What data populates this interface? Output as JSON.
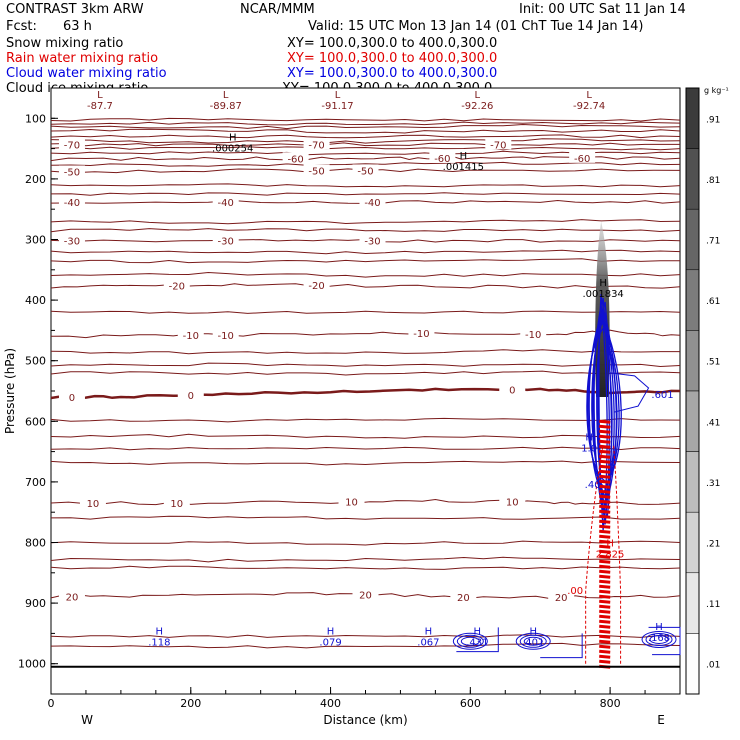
{
  "header": {
    "left_title": "CONTRAST  3km ARW",
    "forecast_label": "Fcst:",
    "forecast_hours": "63 h",
    "center_title": "NCAR/MMM",
    "init_time": "Init: 00 UTC Sat 11 Jan 14",
    "valid_time": "Valid: 15 UTC Mon 13 Jan 14 (01 ChT Tue 14 Jan 14)"
  },
  "fields": [
    {
      "name": "Snow mixing ratio",
      "xy": "XY= 100.0,300.0 to 400.0,300.0",
      "color": "#000000"
    },
    {
      "name": "Rain water mixing ratio",
      "xy": "XY= 100.0,300.0 to 400.0,300.0",
      "color": "#e00000"
    },
    {
      "name": "Cloud water mixing ratio",
      "xy": "XY= 100.0,300.0 to 400.0,300.0",
      "color": "#0000e0"
    },
    {
      "name": "Cloud ice mixing ratio",
      "xy": "XY= 100.0,300.0 to 400.0,300.0",
      "color": "#000000"
    }
  ],
  "colors": {
    "temperature": "#7a1a1a",
    "cloud_water": "#1010d0",
    "rain": "#e00000",
    "snow": "#000000",
    "axis": "#000000"
  },
  "chart_data": {
    "type": "contour",
    "xlabel": "Distance (km)",
    "ylabel": "Pressure (hPa)",
    "xlim": [
      0,
      900
    ],
    "ylim": [
      1050,
      50
    ],
    "x_ticks": [
      0,
      200,
      400,
      600,
      800
    ],
    "x_tick_labels": [
      "0",
      "200",
      "400",
      "600",
      "800"
    ],
    "y_ticks": [
      100,
      200,
      300,
      400,
      500,
      600,
      700,
      800,
      900,
      1000
    ],
    "y_tick_labels": [
      "100",
      "200",
      "300",
      "400",
      "500",
      "600",
      "700",
      "800",
      "900",
      "1000"
    ],
    "direction_left": "W",
    "direction_right": "E",
    "temperature_contours": [
      {
        "value": -70,
        "label": "-70",
        "points": [
          [
            0,
            143
          ],
          [
            200,
            143
          ],
          [
            450,
            143
          ],
          [
            700,
            143
          ],
          [
            900,
            143
          ]
        ],
        "label_x": [
          30,
          380,
          640
        ]
      },
      {
        "value": -60,
        "label": "-60",
        "points": [
          [
            0,
            168
          ],
          [
            200,
            166
          ],
          [
            350,
            166
          ],
          [
            500,
            166
          ],
          [
            600,
            165
          ],
          [
            720,
            165
          ],
          [
            900,
            166
          ]
        ],
        "label_x": [
          350,
          560,
          760
        ]
      },
      {
        "value": -50,
        "label": "-50",
        "points": [
          [
            0,
            188
          ],
          [
            250,
            186
          ],
          [
            400,
            186
          ],
          [
            600,
            186
          ],
          [
            900,
            186
          ]
        ],
        "label_x": [
          30,
          380,
          450
        ]
      },
      {
        "value": -40,
        "label": "-40",
        "points": [
          [
            0,
            238
          ],
          [
            300,
            238
          ],
          [
            500,
            238
          ],
          [
            700,
            238
          ],
          [
            900,
            238
          ]
        ],
        "label_x": [
          30,
          250,
          460
        ]
      },
      {
        "value": -30,
        "label": "-30",
        "points": [
          [
            0,
            302
          ],
          [
            300,
            302
          ],
          [
            500,
            302
          ],
          [
            700,
            302
          ],
          [
            900,
            302
          ]
        ],
        "label_x": [
          30,
          250,
          460
        ]
      },
      {
        "value": -20,
        "label": "-20",
        "points": [
          [
            0,
            378
          ],
          [
            150,
            376
          ],
          [
            300,
            374
          ],
          [
            500,
            377
          ],
          [
            700,
            378
          ],
          [
            900,
            378
          ]
        ],
        "label_x": [
          180,
          380
        ]
      },
      {
        "value": -10,
        "label": "-10",
        "points": [
          [
            0,
            460
          ],
          [
            200,
            458
          ],
          [
            400,
            456
          ],
          [
            550,
            454
          ],
          [
            700,
            456
          ],
          [
            800,
            452
          ],
          [
            900,
            458
          ]
        ],
        "label_x": [
          200,
          250,
          530,
          690
        ]
      },
      {
        "value": 0,
        "label": "0",
        "points": [
          [
            0,
            560
          ],
          [
            100,
            560
          ],
          [
            250,
            555
          ],
          [
            400,
            551
          ],
          [
            550,
            548
          ],
          [
            700,
            547
          ],
          [
            800,
            552
          ],
          [
            900,
            550
          ]
        ],
        "label_x": [
          30,
          200,
          660
        ],
        "bold": true
      },
      {
        "value": 10,
        "label": "10",
        "points": [
          [
            0,
            735
          ],
          [
            200,
            735
          ],
          [
            400,
            733
          ],
          [
            550,
            731
          ],
          [
            700,
            733
          ],
          [
            780,
            735
          ],
          [
            900,
            735
          ]
        ],
        "label_x": [
          60,
          180,
          430,
          660
        ]
      },
      {
        "value": 20,
        "label": "20",
        "points": [
          [
            0,
            889
          ],
          [
            150,
            888
          ],
          [
            300,
            884
          ],
          [
            450,
            886
          ],
          [
            600,
            890
          ],
          [
            750,
            890
          ],
          [
            900,
            888
          ]
        ],
        "label_x": [
          30,
          450,
          590,
          730
        ]
      }
    ],
    "extra_contour_lines_hpa": [
      103,
      108,
      114,
      121,
      130,
      137,
      150,
      157,
      176,
      211,
      225,
      270,
      285,
      320,
      335,
      358,
      420,
      485,
      508,
      520,
      598,
      625,
      645,
      668,
      760,
      800,
      828,
      842,
      955,
      970
    ],
    "labels_low": [
      {
        "marker": "L",
        "value": "-87.7",
        "x": 70,
        "p": 75
      },
      {
        "marker": "L",
        "value": "-89.87",
        "x": 250,
        "p": 75
      },
      {
        "marker": "L",
        "value": "-91.17",
        "x": 410,
        "p": 75
      },
      {
        "marker": "L",
        "value": "-92.26",
        "x": 610,
        "p": 75
      },
      {
        "marker": "L",
        "value": "-92.74",
        "x": 770,
        "p": 75
      }
    ],
    "labels_high_black": [
      {
        "marker": "H",
        "value": ".000254",
        "x": 260,
        "p": 145
      },
      {
        "marker": "H",
        "value": ".001415",
        "x": 590,
        "p": 175
      },
      {
        "marker": "H",
        "value": ".001834",
        "x": 790,
        "p": 385
      }
    ],
    "labels_high_blue": [
      {
        "marker": "H",
        "value": ".118",
        "x": 155,
        "p": 960
      },
      {
        "marker": "H",
        "value": ".079",
        "x": 400,
        "p": 960
      },
      {
        "marker": "H",
        "value": ".067",
        "x": 540,
        "p": 960
      },
      {
        "marker": "H",
        "value": ".431",
        "x": 610,
        "p": 960
      },
      {
        "marker": "H",
        "value": ".401",
        "x": 690,
        "p": 960
      },
      {
        "marker": "H",
        "value": ".168",
        "x": 870,
        "p": 953
      },
      {
        "marker": "H",
        "value": "1.0",
        "x": 770,
        "p": 640
      },
      {
        "marker": "",
        "value": ".40",
        "x": 775,
        "p": 700
      },
      {
        "marker": "",
        "value": ".601",
        "x": 875,
        "p": 552
      }
    ],
    "labels_high_red": [
      {
        "marker": "H",
        "value": "2.825",
        "x": 800,
        "p": 815
      },
      {
        "marker": "",
        "value": ".00",
        "x": 750,
        "p": 875
      }
    ],
    "colorbar": {
      "unit": "g kg⁻¹",
      "labels": [
        ".91",
        ".81",
        ".71",
        ".61",
        ".51",
        ".41",
        ".31",
        ".21",
        ".11",
        ".01"
      ],
      "levels": [
        0.91,
        0.81,
        0.71,
        0.61,
        0.51,
        0.41,
        0.31,
        0.21,
        0.11,
        0.01
      ]
    },
    "snow_plume": {
      "x_center": 790,
      "p_top": 270,
      "p_bottom": 560
    },
    "cloud_water_column": {
      "x_center": 790,
      "p_top": 390,
      "p_bottom": 780
    },
    "rain_column": {
      "x_center": 790,
      "p_top": 600,
      "p_bottom": 1005
    }
  }
}
